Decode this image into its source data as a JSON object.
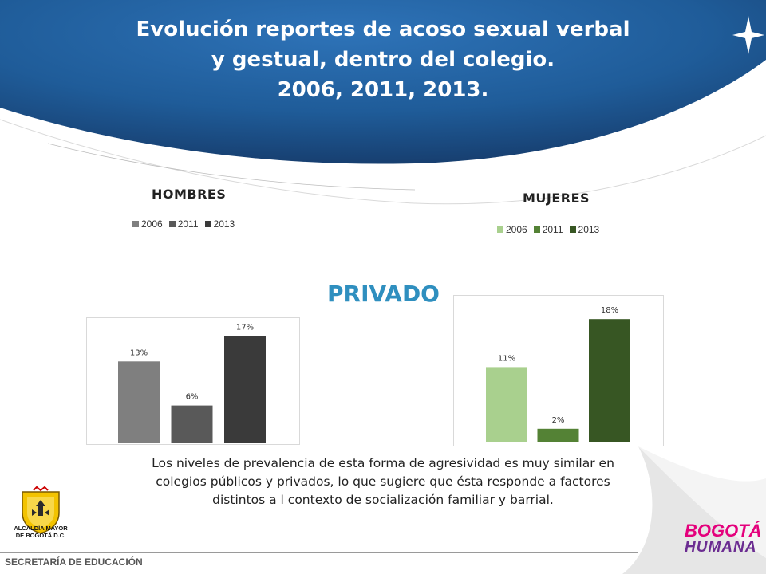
{
  "title": {
    "line1": "Evolución reportes de acoso sexual verbal",
    "line2": "y gestual, dentro del colegio.",
    "line3": "2006, 2011, 2013."
  },
  "section_label": "PRIVADO",
  "caption": {
    "line1": "Los niveles de prevalencia de esta forma de agresividad es  muy similar en",
    "line2": "colegios públicos y privados, lo que sugiere  que ésta responde a factores",
    "line3": "distintos a l contexto de socialización familiar y barrial."
  },
  "footer": "SECRETARÍA DE EDUCACIÓN",
  "logos": {
    "crest_caption_line1": "ALCALDÍA MAYOR",
    "crest_caption_line2": "DE BOGOTÁ D.C.",
    "brand_line1": "BOGOTÁ",
    "brand_line2": "HUMANA"
  },
  "colors": {
    "header_blue": "#1f5c99",
    "section_blue": "#2f8fbf",
    "hombres": [
      "#7f7f7f",
      "#595959",
      "#3a3a3a"
    ],
    "mujeres": [
      "#a9d08e",
      "#548235",
      "#375623"
    ]
  },
  "chart_data": [
    {
      "type": "bar",
      "title": "HOMBRES",
      "categories": [
        "2006",
        "2011",
        "2013"
      ],
      "values": [
        13,
        6,
        17
      ],
      "labels": [
        "13%",
        "6%",
        "17%"
      ],
      "unit": "%",
      "legend": [
        "2006",
        "2011",
        "2013"
      ],
      "ylim": [
        0,
        20
      ],
      "grid": false,
      "legend_position": "top"
    },
    {
      "type": "bar",
      "title": "MUJERES",
      "categories": [
        "2006",
        "2011",
        "2013"
      ],
      "values": [
        11,
        2,
        18
      ],
      "labels": [
        "11%",
        "2%",
        "18%"
      ],
      "unit": "%",
      "legend": [
        "2006",
        "2011",
        "2013"
      ],
      "ylim": [
        0,
        20
      ],
      "grid": false,
      "legend_position": "top"
    }
  ]
}
